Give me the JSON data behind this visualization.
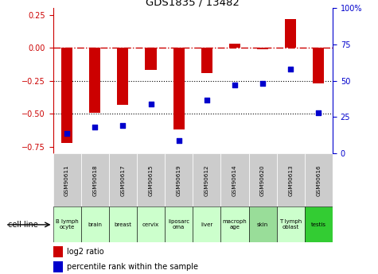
{
  "title": "GDS1835 / 13482",
  "samples": [
    "GSM90611",
    "GSM90618",
    "GSM90617",
    "GSM90615",
    "GSM90619",
    "GSM90612",
    "GSM90614",
    "GSM90620",
    "GSM90613",
    "GSM90616"
  ],
  "cell_lines": [
    "B lymph\nocyte",
    "brain",
    "breast",
    "cervix",
    "liposarc\noma",
    "liver",
    "macroph\nage",
    "skin",
    "T lymph\noblast",
    "testis"
  ],
  "cell_line_colors": [
    "#ccffcc",
    "#ccffcc",
    "#ccffcc",
    "#ccffcc",
    "#ccffcc",
    "#ccffcc",
    "#ccffcc",
    "#99dd99",
    "#ccffcc",
    "#33cc33"
  ],
  "gsm_bg_color": "#cccccc",
  "log2_ratio": [
    -0.72,
    -0.49,
    -0.43,
    -0.17,
    -0.62,
    -0.19,
    0.03,
    -0.01,
    0.22,
    -0.27
  ],
  "percentile_rank": [
    14,
    18,
    19,
    34,
    9,
    37,
    47,
    48,
    58,
    28
  ],
  "bar_color": "#cc0000",
  "dot_color": "#0000cc",
  "ylim_left": [
    -0.8,
    0.3
  ],
  "ylim_right": [
    0,
    100
  ],
  "yticks_left": [
    -0.75,
    -0.5,
    -0.25,
    0,
    0.25
  ],
  "yticks_right": [
    0,
    25,
    50,
    75,
    100
  ],
  "dotted_lines": [
    -0.25,
    -0.5
  ],
  "background_color": "#ffffff"
}
